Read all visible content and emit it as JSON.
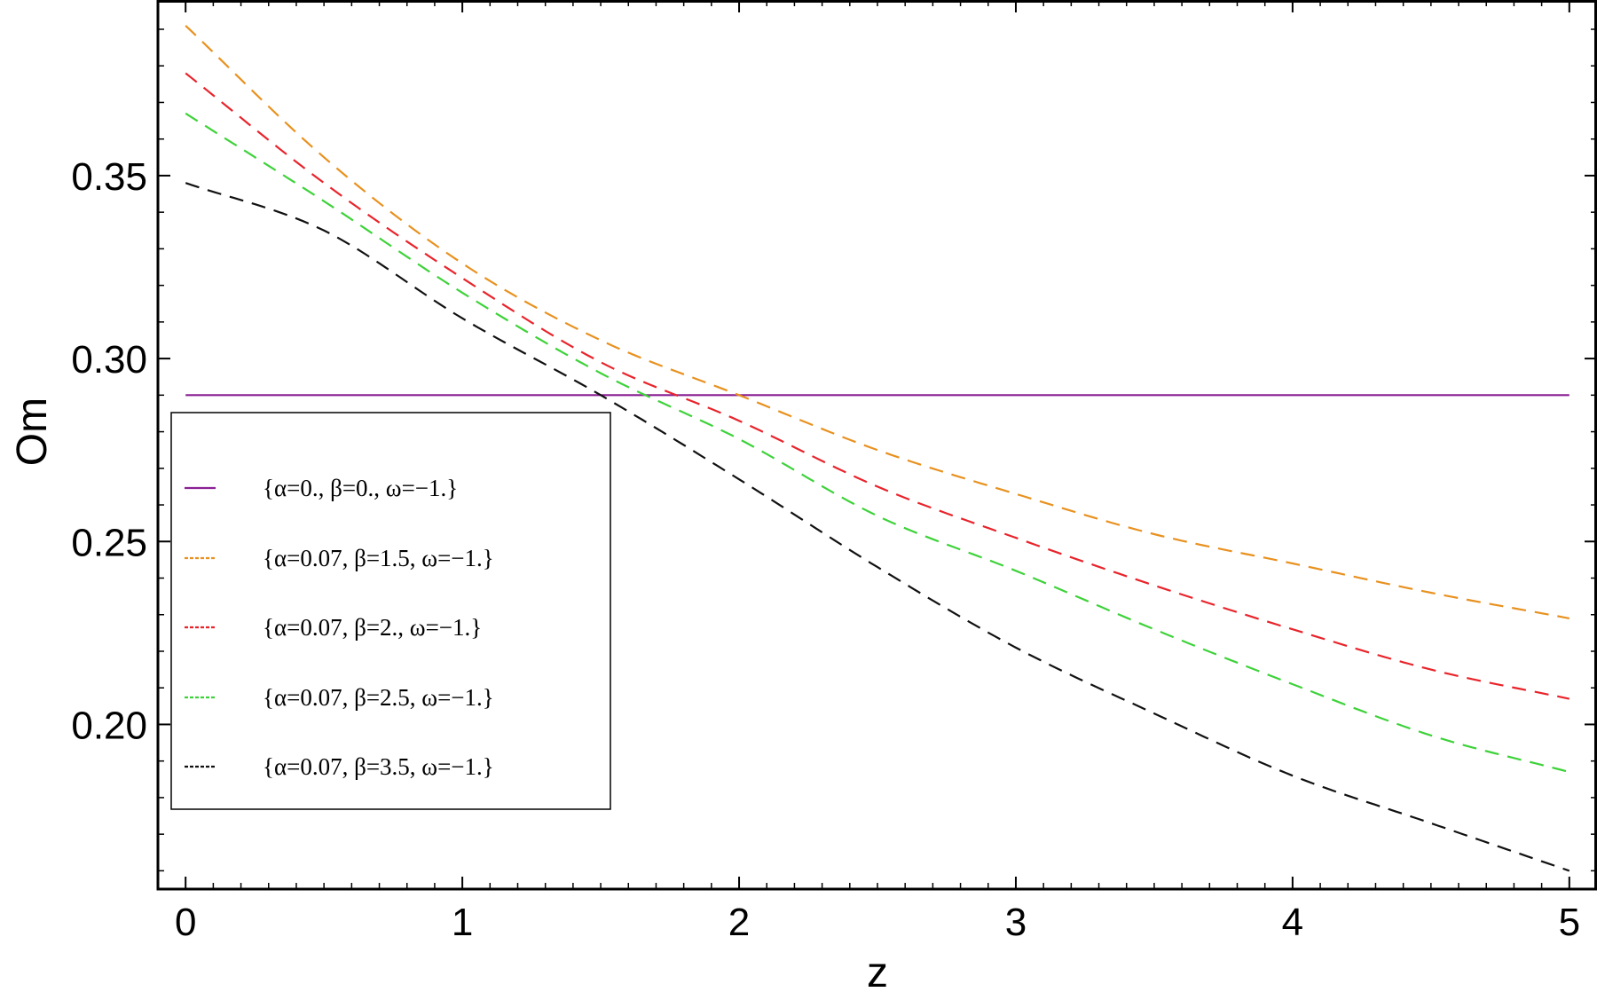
{
  "chart_data": {
    "type": "line",
    "title": "",
    "xlabel": "z",
    "ylabel": "Om",
    "xlim": [
      -0.1,
      5.1
    ],
    "ylim": [
      0.155,
      0.398
    ],
    "x_ticks": [
      0,
      1,
      2,
      3,
      4,
      5
    ],
    "x_tick_labels": [
      "0",
      "1",
      "2",
      "3",
      "4",
      "5"
    ],
    "y_ticks": [
      0.2,
      0.25,
      0.3,
      0.35
    ],
    "y_tick_labels": [
      "0.20",
      "0.25",
      "0.30",
      "0.35"
    ],
    "grid": false,
    "frame": true,
    "legend_position": "left-middle",
    "x": [
      0,
      0.5,
      1,
      1.5,
      2,
      2.5,
      3,
      3.5,
      4,
      4.5,
      5
    ],
    "series": [
      {
        "name": "{α=0., β=0., ω=−1.}",
        "color": "#8a1f93",
        "dashed": false,
        "values": [
          0.29,
          0.29,
          0.29,
          0.29,
          0.29,
          0.29,
          0.29,
          0.29,
          0.29,
          0.29,
          0.29
        ]
      },
      {
        "name": "{α=0.07, β=1.5, ω=−1.}",
        "color": "#e8911f",
        "dashed": true,
        "values": [
          0.391,
          0.355,
          0.326,
          0.305,
          0.29,
          0.275,
          0.263,
          0.252,
          0.244,
          0.236,
          0.229
        ]
      },
      {
        "name": "{α=0.07, β=2., ω=−1.}",
        "color": "#e8242b",
        "dashed": true,
        "values": [
          0.378,
          0.348,
          0.322,
          0.299,
          0.283,
          0.265,
          0.251,
          0.238,
          0.226,
          0.215,
          0.207
        ]
      },
      {
        "name": "{α=0.07, β=2.5, ω=−1.}",
        "color": "#3ed23a",
        "dashed": true,
        "values": [
          0.367,
          0.343,
          0.318,
          0.296,
          0.278,
          0.257,
          0.242,
          0.226,
          0.211,
          0.197,
          0.187
        ]
      },
      {
        "name": "{α=0.07, β=3.5, ω=−1.}",
        "color": "#111111",
        "dashed": true,
        "values": [
          0.348,
          0.335,
          0.311,
          0.29,
          0.267,
          0.243,
          0.221,
          0.203,
          0.186,
          0.173,
          0.16
        ]
      }
    ]
  }
}
